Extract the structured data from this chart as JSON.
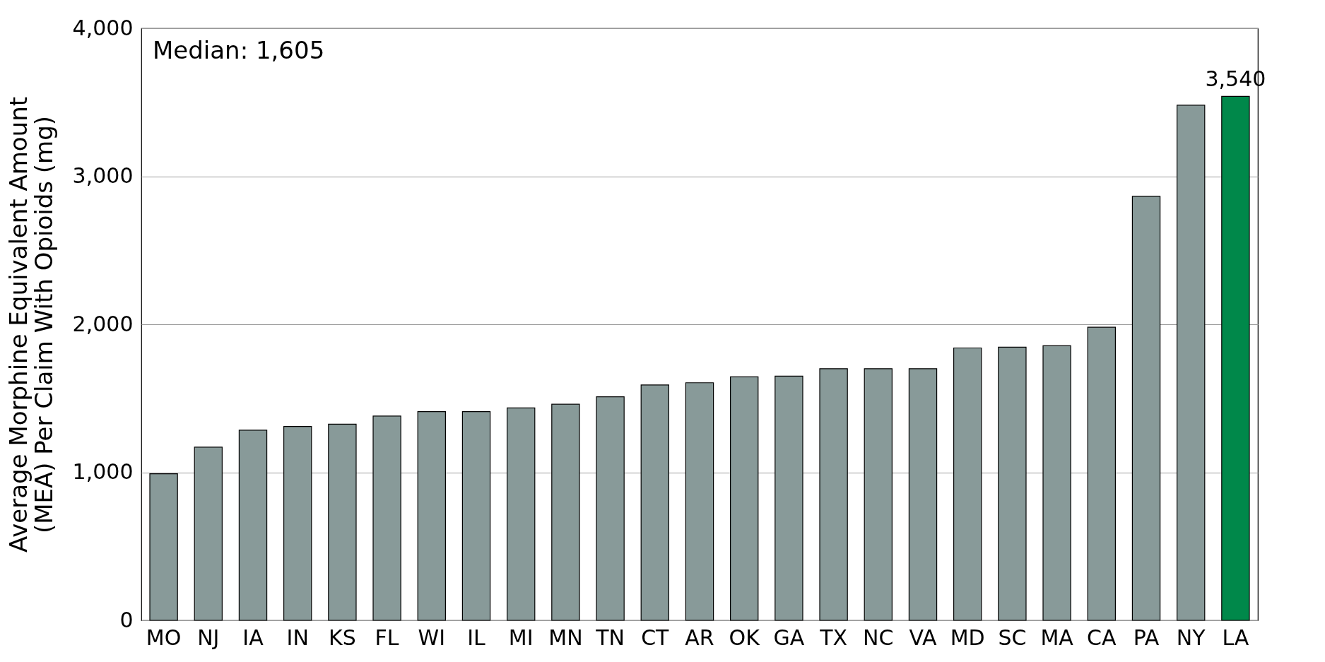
{
  "chart_data": {
    "type": "bar",
    "ylabel": "Average Morphine Equivalent Amount (MEA) Per Claim With Opioids (mg)",
    "categories": [
      "MO",
      "NJ",
      "IA",
      "IN",
      "KS",
      "FL",
      "WI",
      "IL",
      "MI",
      "MN",
      "TN",
      "CT",
      "AR",
      "OK",
      "GA",
      "TX",
      "NC",
      "VA",
      "MD",
      "SC",
      "MA",
      "CA",
      "PA",
      "NY",
      "LA"
    ],
    "values": [
      990,
      1170,
      1285,
      1310,
      1325,
      1380,
      1410,
      1410,
      1435,
      1460,
      1510,
      1590,
      1605,
      1645,
      1650,
      1700,
      1700,
      1700,
      1840,
      1845,
      1855,
      1980,
      2865,
      3480,
      3540
    ],
    "colors": [
      "#889a99",
      "#889a99",
      "#889a99",
      "#889a99",
      "#889a99",
      "#889a99",
      "#889a99",
      "#889a99",
      "#889a99",
      "#889a99",
      "#889a99",
      "#889a99",
      "#889a99",
      "#889a99",
      "#889a99",
      "#889a99",
      "#889a99",
      "#889a99",
      "#889a99",
      "#889a99",
      "#889a99",
      "#889a99",
      "#889a99",
      "#889a99",
      "#00884a"
    ],
    "value_labels": [
      null,
      null,
      null,
      null,
      null,
      null,
      null,
      null,
      null,
      null,
      null,
      null,
      null,
      null,
      null,
      null,
      null,
      null,
      null,
      null,
      null,
      null,
      null,
      null,
      "3,540"
    ],
    "ylim": [
      0,
      4000
    ],
    "yticks": [
      0,
      {
        "value": 1000,
        "label": "1,000"
      },
      {
        "value": 2000,
        "label": "2,000"
      },
      {
        "value": 3000,
        "label": "3,000"
      },
      {
        "value": 4000,
        "label": "4,000"
      }
    ],
    "grid": "y",
    "annotations": [
      "Median: 1,605"
    ]
  }
}
